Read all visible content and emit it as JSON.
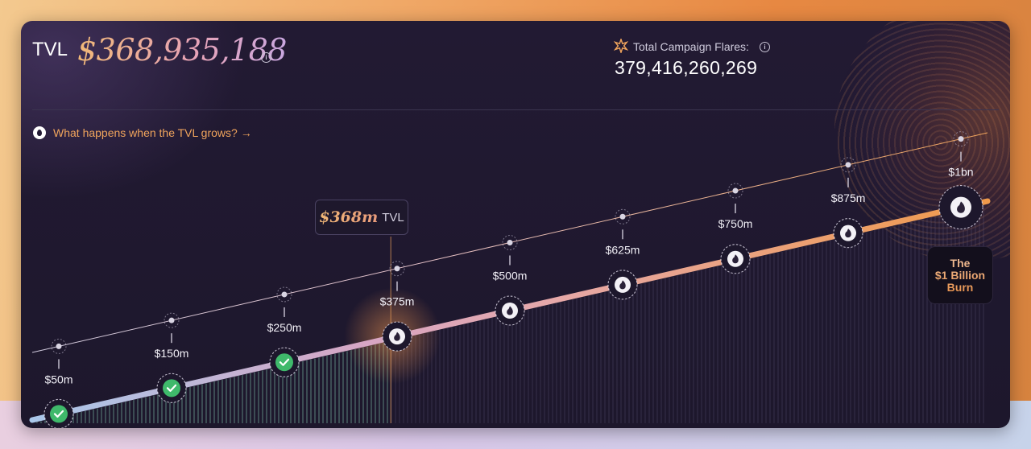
{
  "header": {
    "tvl_label": "TVL",
    "tvl_value": "$368,935,188",
    "flares_label": "Total Campaign Flares:",
    "flares_value": "379,416,260,269"
  },
  "help_link": {
    "label": "What happens when the TVL grows? →"
  },
  "current_tag": {
    "value": "$368m",
    "unit": "TVL"
  },
  "burn_box": {
    "label": "The\n$1 Billion\nBurn"
  },
  "colors": {
    "accent_orange": "#f0a45c",
    "progress_start": "#a9c7ea",
    "progress_mid": "#e0a5b8",
    "progress_end": "#f09a4a",
    "check_green": "#3fb96b"
  },
  "progress": {
    "current_tvl_millions": 368,
    "goal_millions": 1000
  },
  "milestones": [
    {
      "label": "$50m",
      "value_millions": 50,
      "status": "completed"
    },
    {
      "label": "$150m",
      "value_millions": 150,
      "status": "completed"
    },
    {
      "label": "$250m",
      "value_millions": 250,
      "status": "completed"
    },
    {
      "label": "$375m",
      "value_millions": 375,
      "status": "next"
    },
    {
      "label": "$500m",
      "value_millions": 500,
      "status": "locked"
    },
    {
      "label": "$625m",
      "value_millions": 625,
      "status": "locked"
    },
    {
      "label": "$750m",
      "value_millions": 750,
      "status": "locked"
    },
    {
      "label": "$875m",
      "value_millions": 875,
      "status": "locked"
    },
    {
      "label": "$1bn",
      "value_millions": 1000,
      "status": "locked"
    }
  ]
}
